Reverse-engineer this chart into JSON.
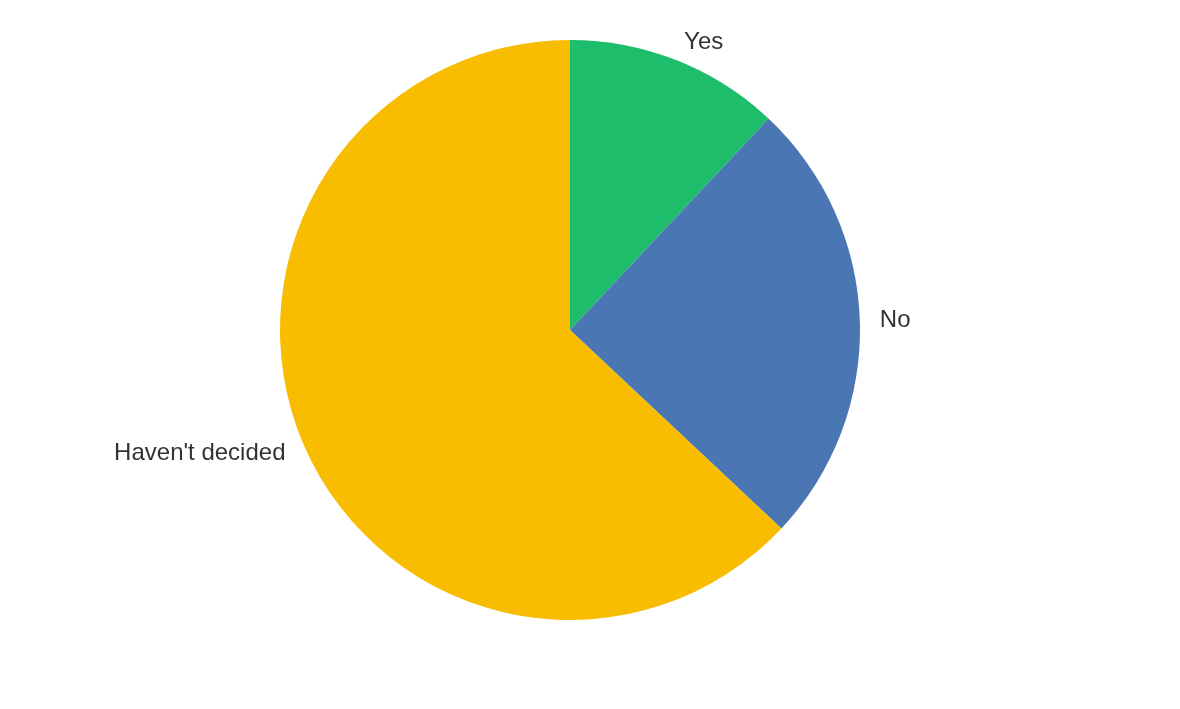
{
  "chart_data": {
    "type": "pie",
    "categories": [
      "Yes",
      "No",
      "Haven't decided"
    ],
    "values": [
      12,
      25,
      63
    ],
    "colors": [
      "#1dbd6c",
      "#4a77b4",
      "#f8bd00"
    ],
    "legend": false
  }
}
